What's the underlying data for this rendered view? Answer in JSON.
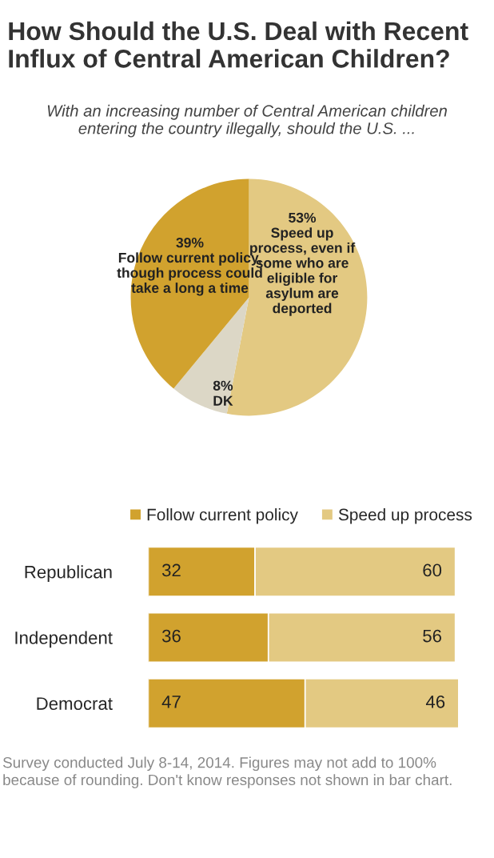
{
  "chart_data": [
    {
      "type": "pie",
      "title": "How Should the U.S. Deal with Recent\nInflux of Central American Children?",
      "subtitle": "With an increasing number of Central American children\nentering the country illegally, should the U.S. ...",
      "categories": [
        "Speed up\nprocess, even if\nsome who are\neligible for\nasylum are\ndeported",
        "DK",
        "Follow current policy,\nthough process could\ntake a long a time"
      ],
      "values": [
        53,
        8,
        39
      ],
      "value_labels": [
        "53%",
        "8%",
        "39%"
      ],
      "colors": [
        "#e3c982",
        "#dcd7c6",
        "#d1a22e"
      ]
    },
    {
      "type": "bar",
      "orientation": "horizontal",
      "stacked": true,
      "categories": [
        "Republican",
        "Independent",
        "Democrat"
      ],
      "series": [
        {
          "name": "Follow current policy",
          "color": "#d1a22e",
          "values": [
            32,
            36,
            47
          ]
        },
        {
          "name": "Speed up process",
          "color": "#e3c982",
          "values": [
            60,
            56,
            46
          ]
        }
      ],
      "data_labels": true,
      "legend": "top right",
      "tick_labels": "y",
      "annotations": [
        "Survey conducted July 8-14, 2014. Figures may not add to 100%\nbecause of rounding. Don't know responses not shown in bar chart."
      ]
    }
  ]
}
